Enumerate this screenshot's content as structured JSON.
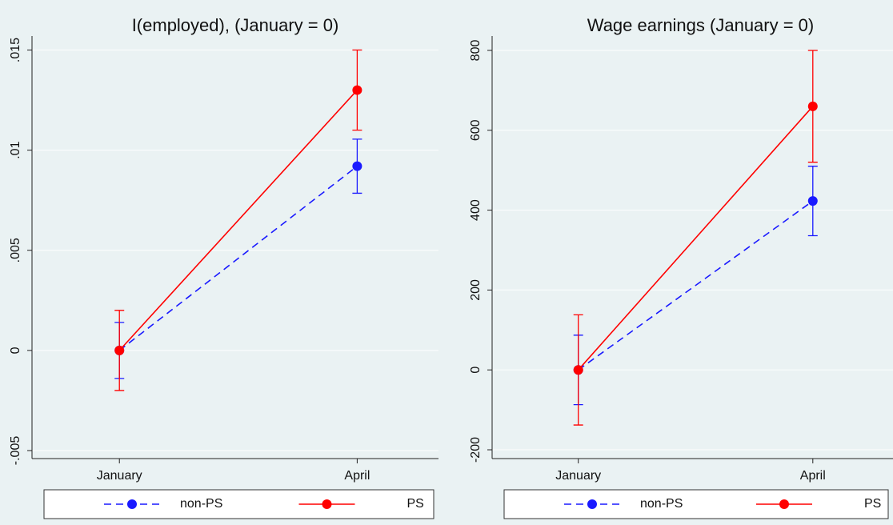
{
  "chart_data": [
    {
      "type": "line",
      "title": "I(employed), (January = 0)",
      "categories": [
        "January",
        "April"
      ],
      "series": [
        {
          "name": "non-PS",
          "color": "#1a1aff",
          "dashed": true,
          "values": [
            0,
            0.0092
          ],
          "errors": [
            0.0014,
            0.00135
          ]
        },
        {
          "name": "PS",
          "color": "#ff0000",
          "dashed": false,
          "values": [
            0,
            0.013
          ],
          "errors": [
            0.002,
            0.002
          ]
        }
      ],
      "ylim": [
        -0.0054,
        0.0157
      ],
      "yticks": [
        {
          "value": -0.005,
          "label": "-.005"
        },
        0,
        {
          "value": 0.005,
          "label": ".005"
        },
        {
          "value": 0.01,
          "label": ".01"
        },
        {
          "value": 0.015,
          "label": ".015"
        }
      ],
      "grid": true
    },
    {
      "type": "line",
      "title": "Wage earnings (January = 0)",
      "categories": [
        "January",
        "April"
      ],
      "series": [
        {
          "name": "non-PS",
          "color": "#1a1aff",
          "dashed": true,
          "values": [
            0,
            423
          ],
          "errors": [
            87,
            87
          ]
        },
        {
          "name": "PS",
          "color": "#ff0000",
          "dashed": false,
          "values": [
            0,
            660
          ],
          "errors": [
            138,
            140
          ]
        }
      ],
      "ylim": [
        -222,
        836
      ],
      "yticks": [
        -200,
        0,
        200,
        400,
        600,
        800
      ],
      "grid": true
    }
  ]
}
